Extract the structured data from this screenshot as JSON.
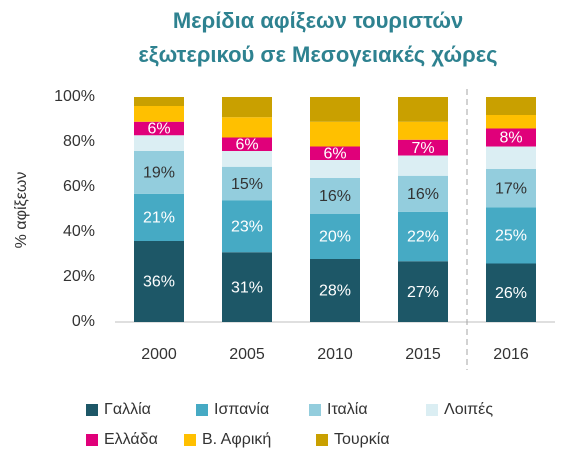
{
  "chart_data": {
    "type": "stacked_bar",
    "title": [
      "Μερίδια αφίξεων τουριστών",
      "εξωτερικού σε Μεσογειακές χώρες"
    ],
    "y_label": "% αφίξεων",
    "categories": [
      "2000",
      "2005",
      "2010",
      "2015",
      "2016"
    ],
    "ylim": [
      0,
      100
    ],
    "yticks": [
      {
        "value": 0,
        "label": "0%"
      },
      {
        "value": 20,
        "label": "20%"
      },
      {
        "value": 40,
        "label": "40%"
      },
      {
        "value": 60,
        "label": "60%"
      },
      {
        "value": 80,
        "label": "80%"
      },
      {
        "value": 100,
        "label": "100%"
      }
    ],
    "series": [
      {
        "name": "Γαλλία",
        "color": "#1d5767",
        "label_color": "#ffffff",
        "values": [
          36,
          31,
          28,
          27,
          26
        ],
        "value_labels": [
          "36%",
          "31%",
          "28%",
          "27%",
          "26%"
        ]
      },
      {
        "name": "Ισπανία",
        "color": "#46aac4",
        "label_color": "#ffffff",
        "values": [
          21,
          23,
          20,
          22,
          25
        ],
        "value_labels": [
          "21%",
          "23%",
          "20%",
          "22%",
          "25%"
        ]
      },
      {
        "name": "Ιταλία",
        "color": "#93cddd",
        "label_color": "#333333",
        "values": [
          19,
          15,
          16,
          16,
          17
        ],
        "value_labels": [
          "19%",
          "15%",
          "16%",
          "16%",
          "17%"
        ]
      },
      {
        "name": "Λοιπές",
        "color": "#dbeef3",
        "values": [
          7,
          7,
          8,
          9,
          10
        ]
      },
      {
        "name": "Ελλάδα",
        "color": "#e0007a",
        "label_color": "#ffffff",
        "values": [
          6,
          6,
          6,
          7,
          8
        ],
        "value_labels": [
          "6%",
          "6%",
          "6%",
          "7%",
          "8%"
        ]
      },
      {
        "name": "Β. Αφρική",
        "color": "#ffc000",
        "values": [
          7,
          9,
          11,
          8,
          6
        ]
      },
      {
        "name": "Τουρκία",
        "color": "#c9a000",
        "values": [
          4,
          9,
          11,
          11,
          8
        ]
      }
    ]
  }
}
